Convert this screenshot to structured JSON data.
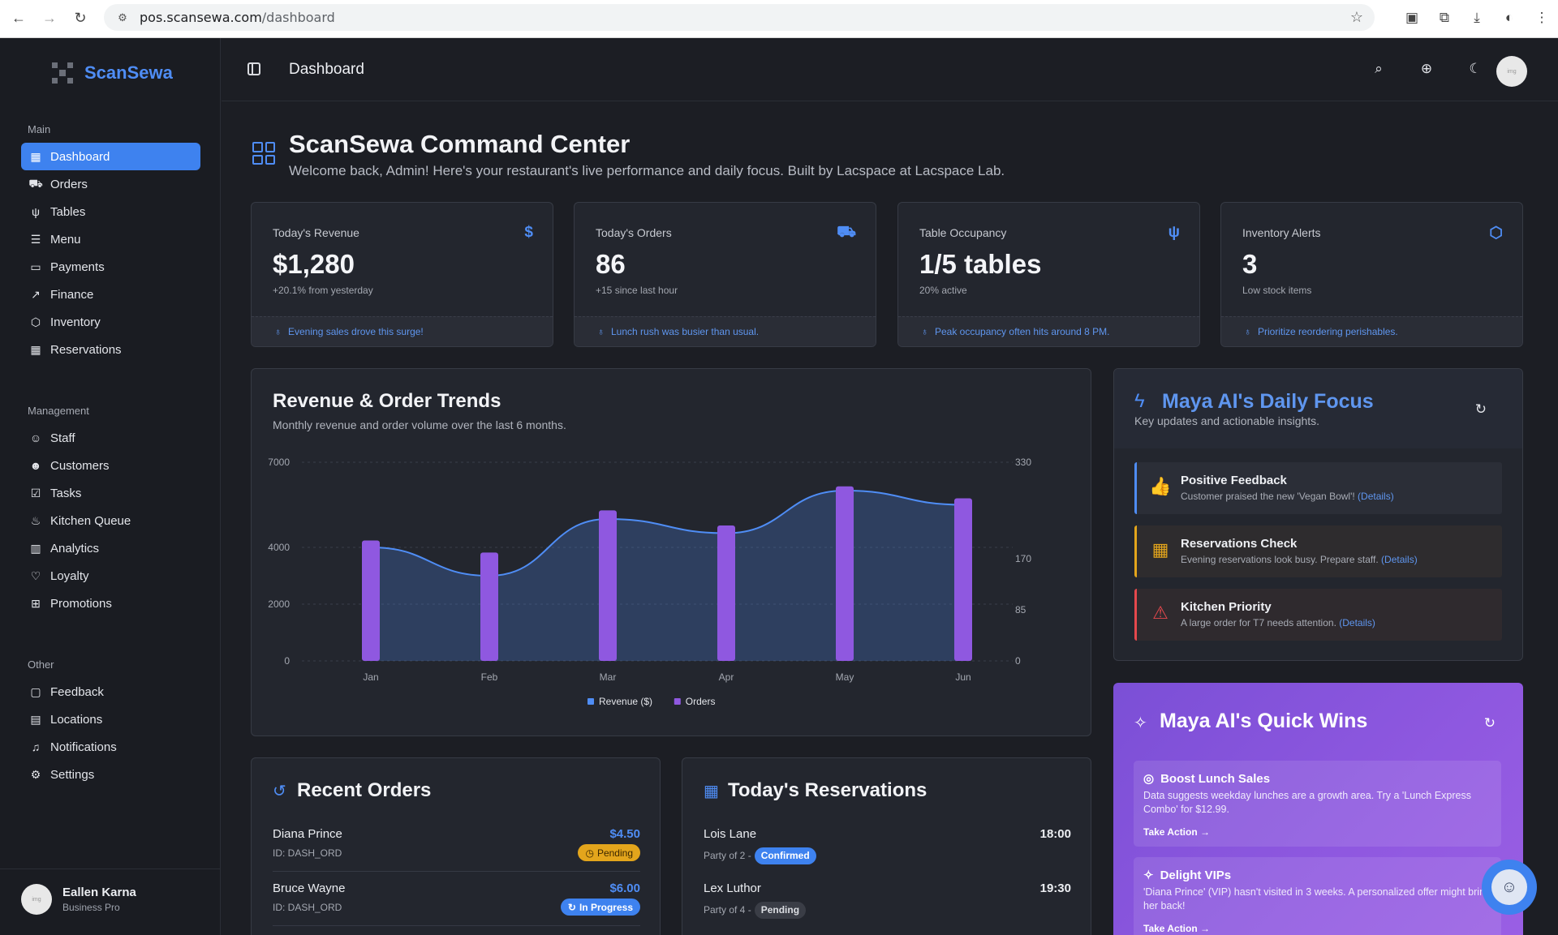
{
  "browser": {
    "url_host": "pos.scansewa.com",
    "url_path": "/dashboard"
  },
  "sidebar": {
    "brand": "ScanSewa",
    "groups": [
      {
        "title": "Main",
        "items": [
          {
            "label": "Dashboard",
            "icon": "grid-icon",
            "active": true
          },
          {
            "label": "Orders",
            "icon": "cart-icon"
          },
          {
            "label": "Tables",
            "icon": "utensils-icon"
          },
          {
            "label": "Menu",
            "icon": "list-icon"
          },
          {
            "label": "Payments",
            "icon": "card-icon"
          },
          {
            "label": "Finance",
            "icon": "trend-icon"
          },
          {
            "label": "Inventory",
            "icon": "box-icon"
          },
          {
            "label": "Reservations",
            "icon": "calendar-icon"
          }
        ]
      },
      {
        "title": "Management",
        "items": [
          {
            "label": "Staff",
            "icon": "users-icon"
          },
          {
            "label": "Customers",
            "icon": "customers-icon"
          },
          {
            "label": "Tasks",
            "icon": "checklist-icon"
          },
          {
            "label": "Kitchen Queue",
            "icon": "chef-hat-icon"
          },
          {
            "label": "Analytics",
            "icon": "bar-chart-icon"
          },
          {
            "label": "Loyalty",
            "icon": "heart-icon"
          },
          {
            "label": "Promotions",
            "icon": "gift-icon"
          }
        ]
      },
      {
        "title": "Other",
        "items": [
          {
            "label": "Feedback",
            "icon": "message-icon"
          },
          {
            "label": "Locations",
            "icon": "book-icon"
          },
          {
            "label": "Notifications",
            "icon": "bell-icon"
          },
          {
            "label": "Settings",
            "icon": "gear-icon"
          }
        ]
      }
    ],
    "user": {
      "name": "Eallen Karna",
      "plan": "Business Pro"
    }
  },
  "topbar": {
    "title": "Dashboard"
  },
  "header": {
    "title": "ScanSewa Command Center",
    "subtitle": "Welcome back, Admin! Here's your restaurant's live performance and daily focus. Built by Lacspace at Lacspace Lab."
  },
  "kpis": [
    {
      "label": "Today's Revenue",
      "value": "$1,280",
      "sub": "+20.1% from yesterday",
      "tip": "Evening sales drove this surge!",
      "icon": "dollar-icon"
    },
    {
      "label": "Today's Orders",
      "value": "86",
      "sub": "+15 since last hour",
      "tip": "Lunch rush was busier than usual.",
      "icon": "cart-icon"
    },
    {
      "label": "Table Occupancy",
      "value": "1/5 tables",
      "sub": "20% active",
      "tip": "Peak occupancy often hits around 8 PM.",
      "icon": "utensils-icon"
    },
    {
      "label": "Inventory Alerts",
      "value": "3",
      "sub": "Low stock items",
      "tip": "Prioritize reordering perishables.",
      "icon": "box-icon"
    }
  ],
  "trend_card": {
    "title": "Revenue & Order Trends",
    "subtitle": "Monthly revenue and order volume over the last 6 months."
  },
  "chart_data": {
    "type": "bar",
    "categories": [
      "Jan",
      "Feb",
      "Mar",
      "Apr",
      "May",
      "Jun"
    ],
    "series": [
      {
        "name": "Revenue ($)",
        "type": "area",
        "axis": "left",
        "color": "#4f8df5",
        "values": [
          4000,
          3000,
          5000,
          4500,
          6000,
          5500
        ]
      },
      {
        "name": "Orders",
        "type": "bar",
        "axis": "right",
        "color": "#8f58e0",
        "values": [
          200,
          180,
          250,
          225,
          290,
          270
        ]
      }
    ],
    "yticks_left": [
      "7000",
      "4000",
      "2000",
      "0"
    ],
    "yticks_right": [
      "330",
      "170",
      "85",
      "0"
    ],
    "ylim_left": [
      0,
      7000
    ],
    "ylim_right": [
      0,
      330
    ],
    "legend": "bottom"
  },
  "focus": {
    "title": "Maya AI's Daily Focus",
    "subtitle": "Key updates and actionable insights.",
    "details_label": "(Details)",
    "items": [
      {
        "title": "Positive Feedback",
        "text": "Customer praised the new 'Vegan Bowl'!",
        "color": "#4f8df5",
        "icon": "thumbs-up-icon"
      },
      {
        "title": "Reservations Check",
        "text": "Evening reservations look busy. Prepare staff.",
        "color": "#e3a51c",
        "icon": "calendar-clock-icon"
      },
      {
        "title": "Kitchen Priority",
        "text": "A large order for T7 needs attention.",
        "color": "#e5484d",
        "icon": "warning-icon"
      }
    ]
  },
  "quick_wins": {
    "title": "Maya AI's Quick Wins",
    "items": [
      {
        "title": "Boost Lunch Sales",
        "text": "Data suggests weekday lunches are a growth area. Try a 'Lunch Express Combo' for $12.99.",
        "action": "Take Action →",
        "icon": "target-icon"
      },
      {
        "title": "Delight VIPs",
        "text": "'Diana Prince' (VIP) hasn't visited in 3 weeks. A personalized offer might bring her back!",
        "action": "Take Action →",
        "icon": "sparkle-icon"
      }
    ]
  },
  "orders": {
    "title": "Recent Orders",
    "items": [
      {
        "name": "Diana Prince",
        "id": "ID: DASH_ORD",
        "amount": "$4.50",
        "status": "Pending"
      },
      {
        "name": "Bruce Wayne",
        "id": "ID: DASH_ORD",
        "amount": "$6.00",
        "status": "In Progress"
      }
    ]
  },
  "reservations": {
    "title": "Today's Reservations",
    "items": [
      {
        "name": "Lois Lane",
        "party": "Party of 2 -",
        "time": "18:00",
        "status": "Confirmed"
      },
      {
        "name": "Lex Luthor",
        "party": "Party of 4 -",
        "time": "19:30",
        "status": "Pending"
      }
    ]
  }
}
